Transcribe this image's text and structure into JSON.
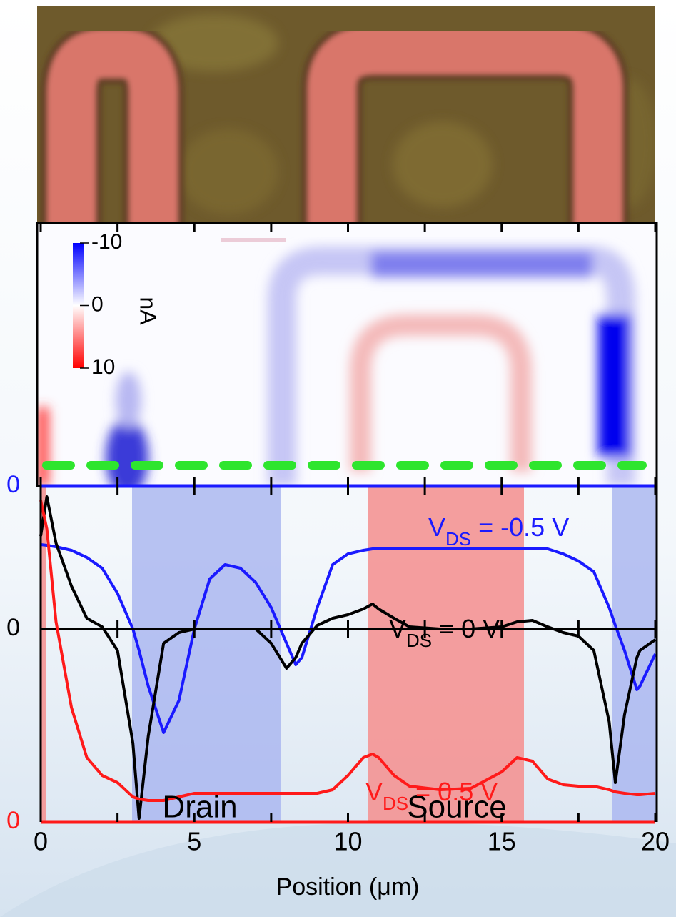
{
  "chart_data": {
    "type": "line",
    "xlabel": "Position (μm)",
    "xlim": [
      0,
      20
    ],
    "xticks": [
      0,
      5,
      10,
      15,
      20
    ],
    "xminor": [
      2.5,
      7.5,
      12.5,
      17.5
    ],
    "x": [
      0,
      0.2,
      0.5,
      1,
      1.5,
      2,
      2.5,
      3,
      3.2,
      3.5,
      4,
      4.5,
      5,
      5.5,
      6,
      6.5,
      7,
      7.5,
      8,
      8.3,
      8.5,
      9,
      9.5,
      10,
      10.5,
      10.8,
      11,
      11.5,
      12,
      13,
      14,
      15,
      15.5,
      16,
      16.5,
      17,
      17.5,
      18,
      18.5,
      18.7,
      19,
      19.4,
      19.5,
      20
    ],
    "series": [
      {
        "label": {
          "symbol": "V",
          "subscript": "DS",
          "text": " = -0.5 V"
        },
        "color": "#1a1aff",
        "ylim": [
          -47,
          0
        ],
        "yticks": [
          0
        ],
        "values": [
          -8.2,
          -8.3,
          -8.5,
          -9,
          -10,
          -11.5,
          -15,
          -20,
          -23,
          -28,
          -34.5,
          -30,
          -20,
          -13,
          -11,
          -11.5,
          -13.5,
          -17,
          -22,
          -25,
          -24,
          -17,
          -11,
          -9.5,
          -9,
          -8.8,
          -8.8,
          -8.7,
          -8.7,
          -8.7,
          -8.7,
          -8.7,
          -8.7,
          -8.7,
          -8.8,
          -9.5,
          -10.5,
          -12,
          -17,
          -19.5,
          -23,
          -28.5,
          -28,
          -23.5
        ]
      },
      {
        "label": {
          "symbol": "V",
          "subscript": "DS",
          "text": " = 0 V"
        },
        "color": "#000000",
        "ylim": [
          -27,
          20
        ],
        "yticks": [
          0
        ],
        "values": [
          13,
          18.5,
          12,
          6,
          1.5,
          0.3,
          -3,
          -16,
          -26.5,
          -15,
          -2,
          -0.5,
          0,
          0,
          0,
          0,
          0,
          -2,
          -5.5,
          -4,
          -2,
          0.5,
          1.5,
          2,
          2.8,
          3.5,
          2.8,
          1.5,
          0.3,
          0,
          0,
          0.3,
          1,
          1.2,
          0.3,
          -0.5,
          -1,
          -3,
          -13,
          -21.5,
          -12,
          -4,
          -3,
          -1.5
        ]
      },
      {
        "label": {
          "symbol": "V",
          "subscript": "DS",
          "text": " = 0.5 V"
        },
        "color": "#ff1a1a",
        "ylim": [
          0,
          47
        ],
        "yticks": [
          0
        ],
        "values": [
          45,
          41,
          28,
          16,
          9,
          6.5,
          5.5,
          3.5,
          3.2,
          3,
          3,
          3.5,
          4,
          4,
          4,
          4,
          4,
          4,
          4,
          4,
          4,
          4,
          4.5,
          6.5,
          9,
          9.5,
          9,
          6.5,
          5,
          4.5,
          4.7,
          7,
          9,
          8.5,
          6,
          5.2,
          5,
          5,
          4.5,
          4.2,
          4,
          3.8,
          3.8,
          4
        ]
      }
    ],
    "annotations": [
      "Drain",
      "Source"
    ],
    "colorbar": {
      "label": "nA",
      "lim": [
        -10,
        10
      ],
      "ticks": [
        -10,
        0,
        10
      ]
    }
  }
}
